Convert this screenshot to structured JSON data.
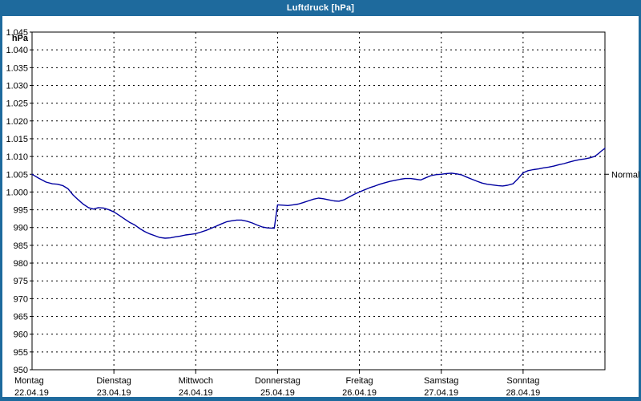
{
  "window": {
    "title": "Luftdruck [hPa]"
  },
  "colors": {
    "chrome": "#1e6a9d",
    "title_text": "#ffffff",
    "line": "#0000a0",
    "grid": "#000000",
    "background": "#ffffff"
  },
  "chart_data": {
    "type": "line",
    "title": "Luftdruck [hPa]",
    "grid": true,
    "legend_position": "none",
    "y_axis": {
      "unit_label": "hPa",
      "min": 950,
      "max": 1045,
      "tick_step": 5,
      "ticks": [
        {
          "value": 1045,
          "label": "1.045"
        },
        {
          "value": 1040,
          "label": "1.040"
        },
        {
          "value": 1035,
          "label": "1.035"
        },
        {
          "value": 1030,
          "label": "1.030"
        },
        {
          "value": 1025,
          "label": "1.025"
        },
        {
          "value": 1020,
          "label": "1.020"
        },
        {
          "value": 1015,
          "label": "1.015"
        },
        {
          "value": 1010,
          "label": "1.010"
        },
        {
          "value": 1005,
          "label": "1.005"
        },
        {
          "value": 1000,
          "label": "1.000"
        },
        {
          "value": 995,
          "label": "995"
        },
        {
          "value": 990,
          "label": "990"
        },
        {
          "value": 985,
          "label": "985"
        },
        {
          "value": 980,
          "label": "980"
        },
        {
          "value": 975,
          "label": "975"
        },
        {
          "value": 970,
          "label": "970"
        },
        {
          "value": 965,
          "label": "965"
        },
        {
          "value": 960,
          "label": "960"
        },
        {
          "value": 955,
          "label": "955"
        },
        {
          "value": 950,
          "label": "950"
        }
      ]
    },
    "x_axis": {
      "span_days": 7,
      "days": [
        {
          "name": "Montag",
          "date": "22.04.19"
        },
        {
          "name": "Dienstag",
          "date": "23.04.19"
        },
        {
          "name": "Mittwoch",
          "date": "24.04.19"
        },
        {
          "name": "Donnerstag",
          "date": "25.04.19"
        },
        {
          "name": "Freitag",
          "date": "26.04.19"
        },
        {
          "name": "Samstag",
          "date": "27.04.19"
        },
        {
          "name": "Sonntag",
          "date": "28.04.19"
        }
      ]
    },
    "annotations": {
      "normal_label": "Normal",
      "normal_value_hpa": 1005
    },
    "series": [
      {
        "name": "Luftdruck",
        "color": "#0000a0",
        "points": [
          [
            0.0,
            1005.0
          ],
          [
            0.08,
            1003.9
          ],
          [
            0.17,
            1002.8
          ],
          [
            0.25,
            1002.3
          ],
          [
            0.31,
            1002.2
          ],
          [
            0.375,
            1001.8
          ],
          [
            0.44,
            1000.9
          ],
          [
            0.5,
            999.2
          ],
          [
            0.56,
            997.9
          ],
          [
            0.625,
            996.6
          ],
          [
            0.69,
            995.6
          ],
          [
            0.75,
            995.2
          ],
          [
            0.81,
            995.6
          ],
          [
            0.875,
            995.5
          ],
          [
            0.94,
            995.0
          ],
          [
            1.0,
            994.4
          ],
          [
            1.06,
            993.5
          ],
          [
            1.125,
            992.5
          ],
          [
            1.19,
            991.5
          ],
          [
            1.25,
            990.8
          ],
          [
            1.31,
            989.8
          ],
          [
            1.375,
            988.9
          ],
          [
            1.44,
            988.2
          ],
          [
            1.5,
            987.7
          ],
          [
            1.56,
            987.2
          ],
          [
            1.625,
            987.0
          ],
          [
            1.69,
            987.1
          ],
          [
            1.75,
            987.4
          ],
          [
            1.81,
            987.6
          ],
          [
            1.875,
            987.9
          ],
          [
            1.94,
            988.1
          ],
          [
            2.0,
            988.3
          ],
          [
            2.06,
            988.7
          ],
          [
            2.125,
            989.2
          ],
          [
            2.19,
            989.8
          ],
          [
            2.25,
            990.4
          ],
          [
            2.31,
            991.0
          ],
          [
            2.375,
            991.6
          ],
          [
            2.44,
            991.9
          ],
          [
            2.5,
            992.1
          ],
          [
            2.56,
            992.1
          ],
          [
            2.625,
            991.8
          ],
          [
            2.69,
            991.3
          ],
          [
            2.75,
            990.7
          ],
          [
            2.81,
            990.2
          ],
          [
            2.875,
            989.9
          ],
          [
            2.96,
            989.8
          ],
          [
            3.0,
            996.4
          ],
          [
            3.06,
            996.3
          ],
          [
            3.125,
            996.2
          ],
          [
            3.19,
            996.4
          ],
          [
            3.25,
            996.6
          ],
          [
            3.31,
            997.0
          ],
          [
            3.375,
            997.5
          ],
          [
            3.44,
            998.0
          ],
          [
            3.5,
            998.3
          ],
          [
            3.56,
            998.1
          ],
          [
            3.625,
            997.8
          ],
          [
            3.69,
            997.5
          ],
          [
            3.75,
            997.4
          ],
          [
            3.81,
            997.8
          ],
          [
            3.875,
            998.6
          ],
          [
            3.94,
            999.4
          ],
          [
            4.0,
            1000.0
          ],
          [
            4.06,
            1000.6
          ],
          [
            4.125,
            1001.2
          ],
          [
            4.19,
            1001.7
          ],
          [
            4.25,
            1002.2
          ],
          [
            4.31,
            1002.6
          ],
          [
            4.375,
            1003.0
          ],
          [
            4.44,
            1003.3
          ],
          [
            4.5,
            1003.6
          ],
          [
            4.56,
            1003.8
          ],
          [
            4.625,
            1003.8
          ],
          [
            4.69,
            1003.6
          ],
          [
            4.75,
            1003.4
          ],
          [
            4.81,
            1004.0
          ],
          [
            4.875,
            1004.6
          ],
          [
            4.94,
            1004.9
          ],
          [
            5.0,
            1005.0
          ],
          [
            5.06,
            1005.2
          ],
          [
            5.125,
            1005.3
          ],
          [
            5.19,
            1005.1
          ],
          [
            5.25,
            1004.8
          ],
          [
            5.31,
            1004.2
          ],
          [
            5.375,
            1003.6
          ],
          [
            5.44,
            1003.0
          ],
          [
            5.5,
            1002.5
          ],
          [
            5.56,
            1002.2
          ],
          [
            5.625,
            1002.0
          ],
          [
            5.69,
            1001.8
          ],
          [
            5.75,
            1001.7
          ],
          [
            5.81,
            1001.9
          ],
          [
            5.875,
            1002.3
          ],
          [
            5.94,
            1003.8
          ],
          [
            6.0,
            1005.4
          ],
          [
            6.06,
            1006.0
          ],
          [
            6.125,
            1006.3
          ],
          [
            6.19,
            1006.5
          ],
          [
            6.25,
            1006.8
          ],
          [
            6.31,
            1007.0
          ],
          [
            6.375,
            1007.3
          ],
          [
            6.44,
            1007.7
          ],
          [
            6.5,
            1008.0
          ],
          [
            6.56,
            1008.4
          ],
          [
            6.625,
            1008.8
          ],
          [
            6.69,
            1009.1
          ],
          [
            6.75,
            1009.3
          ],
          [
            6.81,
            1009.6
          ],
          [
            6.875,
            1010.0
          ],
          [
            6.92,
            1010.8
          ],
          [
            6.96,
            1011.6
          ],
          [
            7.0,
            1012.3
          ]
        ]
      }
    ]
  }
}
